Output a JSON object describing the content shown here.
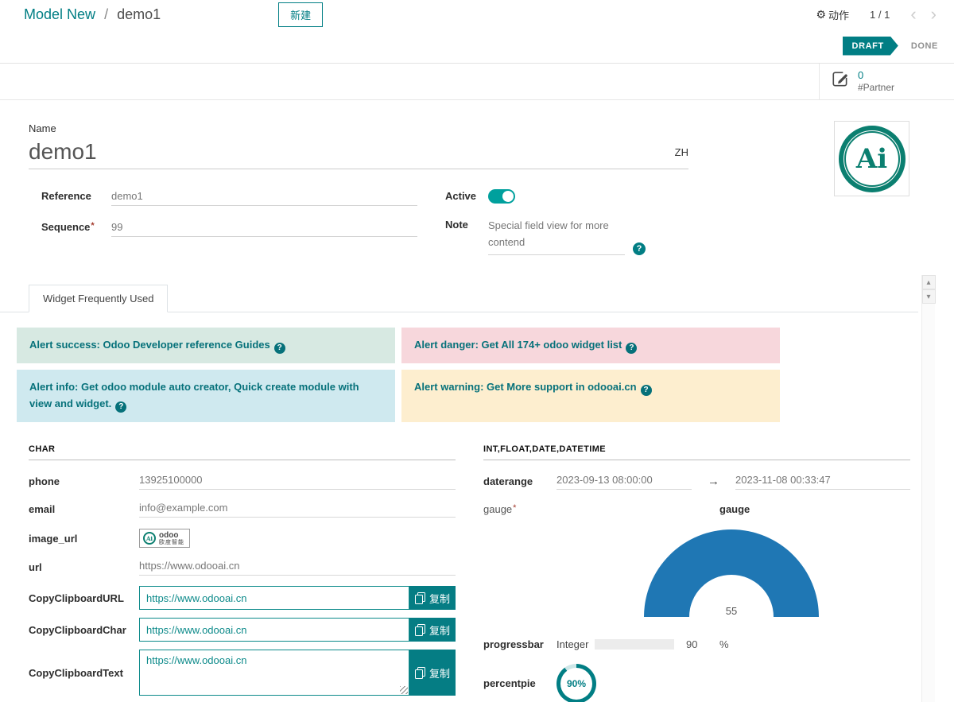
{
  "breadcrumb": {
    "parent": "Model New",
    "separator": "/",
    "current": "demo1"
  },
  "toolbar": {
    "new_button": "新建",
    "action_label": "动作",
    "pager": "1 / 1"
  },
  "icons": {
    "gear": "⚙",
    "prev": "‹",
    "next": "›",
    "scroll_up": "▴",
    "scroll_down": "▾",
    "question": "?",
    "arrow_right": "→"
  },
  "statusbar": {
    "draft": "DRAFT",
    "done": "DONE"
  },
  "button_box": {
    "count": "0",
    "label": "#Partner"
  },
  "name_field": {
    "label": "Name",
    "value": "demo1",
    "lang": "ZH"
  },
  "logo": {
    "text": "Ai"
  },
  "fields": {
    "reference": {
      "label": "Reference",
      "value": "demo1"
    },
    "sequence": {
      "label": "Sequence",
      "value": "99",
      "required_marker": "*"
    },
    "active": {
      "label": "Active",
      "on": true
    },
    "note": {
      "label": "Note",
      "value": "Special field view for more contend"
    }
  },
  "notebook": {
    "active_tab": "Widget Frequently Used"
  },
  "alerts": [
    {
      "type": "success",
      "text": "Alert success: Odoo Developer reference Guides"
    },
    {
      "type": "danger",
      "text": "Alert danger: Get All 174+ odoo widget list"
    },
    {
      "type": "info",
      "text": "Alert info: Get odoo module auto creator, Quick create module with view and widget."
    },
    {
      "type": "warning",
      "text": "Alert warning: Get More support in odooai.cn"
    }
  ],
  "char_section": {
    "title": "CHAR",
    "phone": {
      "label": "phone",
      "value": "13925100000"
    },
    "email": {
      "label": "email",
      "value": "info@example.com"
    },
    "image_url": {
      "label": "image_url",
      "logo_circle": "Ai",
      "logo_line1": "odoo",
      "logo_line2": "欧度智能"
    },
    "url": {
      "label": "url",
      "value": "https://www.odooai.cn"
    },
    "clipboard": [
      {
        "label": "CopyClipboardURL",
        "value": "https://www.odooai.cn",
        "button": "复制"
      },
      {
        "label": "CopyClipboardChar",
        "value": "https://www.odooai.cn",
        "button": "复制"
      },
      {
        "label": "CopyClipboardText",
        "value": "https://www.odooai.cn",
        "button": "复制"
      }
    ]
  },
  "num_section": {
    "title": "INT,FLOAT,DATE,DATETIME",
    "daterange": {
      "label": "daterange",
      "start": "2023-09-13 08:00:00",
      "end": "2023-11-08 00:33:47"
    },
    "gauge": {
      "label": "gauge",
      "required_marker": "*",
      "title": "gauge",
      "value": "55",
      "color": "#1f77b4"
    },
    "progressbar": {
      "label": "progressbar",
      "type_text": "Integer",
      "value": 90,
      "display": "90",
      "unit": "%"
    },
    "percentpie": {
      "label": "percentpie",
      "percent": 90,
      "display": "90%"
    }
  },
  "colors": {
    "teal": "#017e84",
    "toggle": "#00a09d",
    "gauge_blue": "#1f77b4",
    "pie_rest": "#cde7e8"
  }
}
